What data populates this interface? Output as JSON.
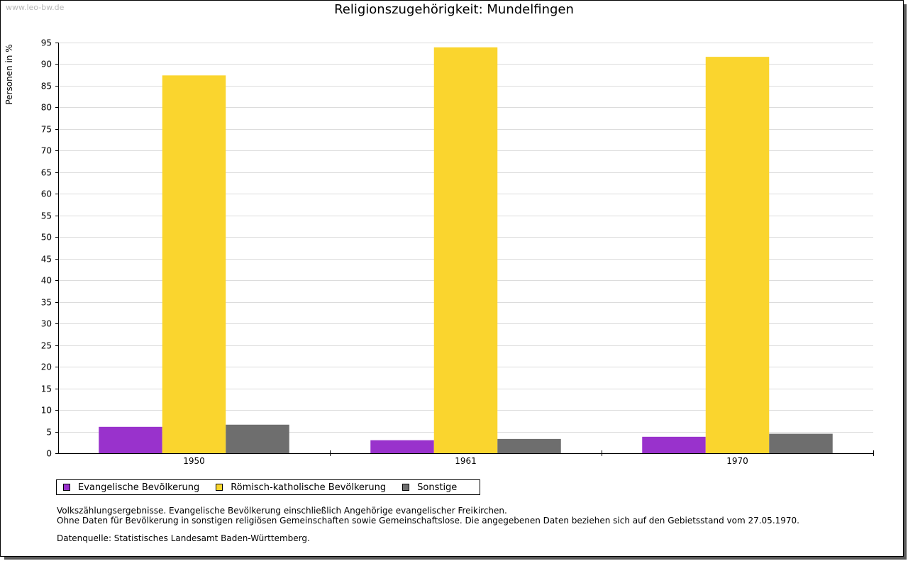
{
  "watermark": "www.leo-bw.de",
  "notes": [
    "Volkszählungsergebnisse. Evangelische Bevölkerung einschließlich Angehörige evangelischer Freikirchen.",
    "Ohne Daten für Bevölkerung in sonstigen religiösen Gemeinschaften sowie Gemeinschaftslose. Die angegebenen Daten beziehen sich auf den Gebietsstand vom 27.05.1970."
  ],
  "source": "Datenquelle: Statistisches Landesamt Baden-Württemberg.",
  "chart_data": {
    "type": "bar",
    "title": "Religionszugehörigkeit: Mundelfingen",
    "xlabel": "",
    "ylabel": "Personen in %",
    "categories": [
      "1950",
      "1961",
      "1970"
    ],
    "ylim": [
      0,
      95
    ],
    "yticks": [
      0,
      5,
      10,
      15,
      20,
      25,
      30,
      35,
      40,
      45,
      50,
      55,
      60,
      65,
      70,
      75,
      80,
      85,
      90,
      95
    ],
    "grid": true,
    "legend_position": "bottom-left",
    "series": [
      {
        "name": "Evangelische Bevölkerung",
        "color": "#9932cc",
        "values": [
          6.1,
          3.0,
          3.8
        ]
      },
      {
        "name": "Römisch-katholische Bevölkerung",
        "color": "#fad52e",
        "values": [
          87.4,
          93.9,
          91.7
        ]
      },
      {
        "name": "Sonstige",
        "color": "#6e6e6e",
        "values": [
          6.6,
          3.3,
          4.5
        ]
      }
    ]
  }
}
